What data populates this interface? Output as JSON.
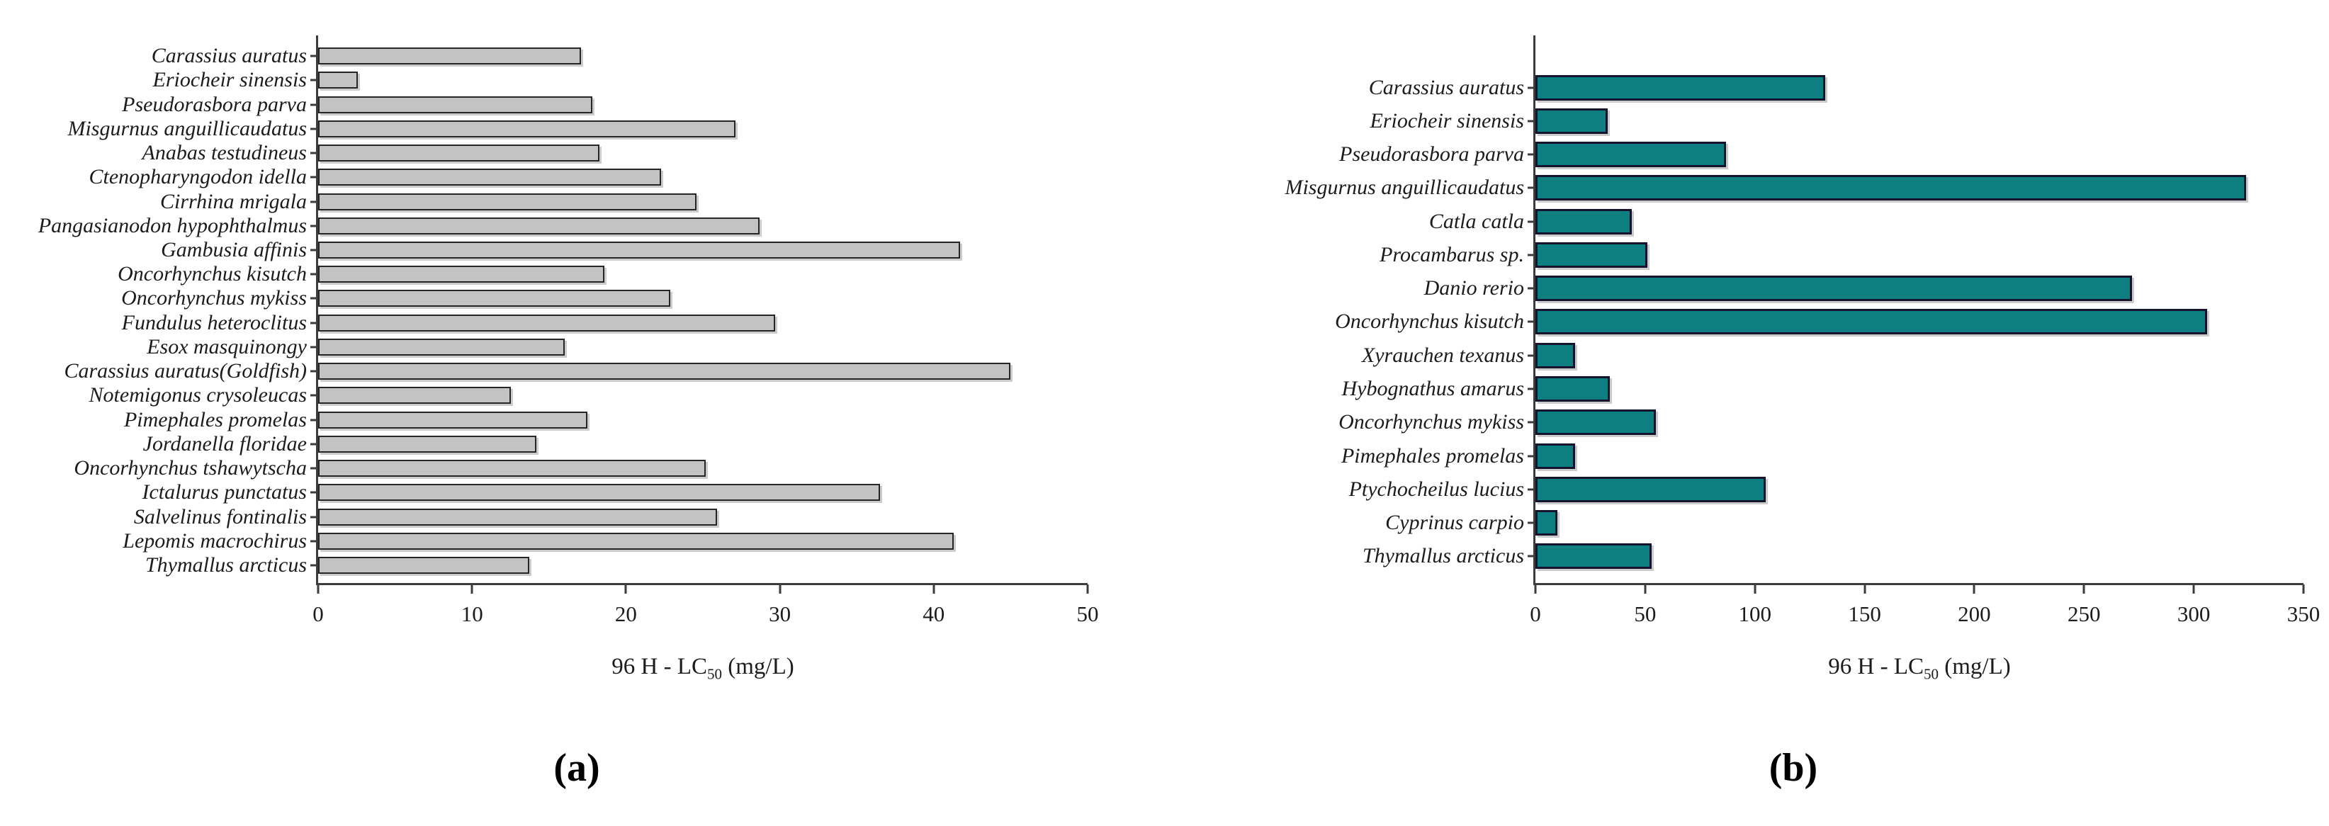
{
  "figure": {
    "description_visible_text_only": true,
    "panel_labels": [
      "(a)",
      "(b)"
    ]
  },
  "chart_data": [
    {
      "type": "bar",
      "orientation": "horizontal",
      "panel_label": "(a)",
      "title": "",
      "xlabel": "96 H - LC50 (mg/L)",
      "xlabel_parts": {
        "prefix": "96 H - LC",
        "sub": "50",
        "suffix": " (mg/L)"
      },
      "xlim": [
        0,
        50
      ],
      "xticks": [
        0,
        10,
        20,
        30,
        40,
        50
      ],
      "grid": false,
      "legend": false,
      "bar_fill_color": "#c3c3c3",
      "bar_border_color": "#262626",
      "categories": [
        "Carassius auratus",
        "Eriocheir sinensis",
        "Pseudorasbora parva",
        "Misgurnus anguillicaudatus",
        "Anabas testudineus",
        "Ctenopharyngodon idella",
        "Cirrhina mrigala",
        "Pangasianodon hypophthalmus",
        "Gambusia affinis",
        "Oncorhynchus kisutch",
        "Oncorhynchus mykiss",
        "Fundulus heteroclitus",
        "Esox masquinongy",
        "Carassius auratus(Goldfish)",
        "Notemigonus crysoleucas",
        "Pimephales promelas",
        "Jordanella floridae",
        "Oncorhynchus tshawytscha",
        "Ictalurus punctatus",
        "Salvelinus fontinalis",
        "Lepomis macrochirus",
        "Thymallus arcticus"
      ],
      "values": [
        17.1,
        2.6,
        17.8,
        27.1,
        18.3,
        22.3,
        24.6,
        28.7,
        41.7,
        18.6,
        22.9,
        29.7,
        16.0,
        45.0,
        12.5,
        17.5,
        14.2,
        25.2,
        36.5,
        25.9,
        41.3,
        13.7
      ]
    },
    {
      "type": "bar",
      "orientation": "horizontal",
      "panel_label": "(b)",
      "title": "",
      "xlabel": "96 H - LC50 (mg/L)",
      "xlabel_parts": {
        "prefix": "96 H - LC",
        "sub": "50",
        "suffix": " (mg/L)"
      },
      "xlim": [
        0,
        350
      ],
      "xticks": [
        0,
        50,
        100,
        150,
        200,
        250,
        300,
        350
      ],
      "grid": false,
      "legend": false,
      "bar_fill_color": "#0d7f80",
      "bar_border_color": "#14142e",
      "categories": [
        "Carassius auratus",
        "Eriocheir sinensis",
        "Pseudorasbora parva",
        "Misgurnus anguillicaudatus",
        "Catla catla",
        "Procambarus sp.",
        "Danio rerio",
        "Oncorhynchus kisutch",
        "Xyrauchen texanus",
        "Hybognathus amarus",
        "Oncorhynchus mykiss",
        "Pimephales promelas",
        "Ptychocheilus lucius",
        "Cyprinus carpio",
        "Thymallus arcticus"
      ],
      "values": [
        132,
        33,
        87,
        324,
        44,
        51,
        272,
        306,
        18,
        34,
        55,
        18,
        105,
        10,
        53
      ]
    }
  ]
}
